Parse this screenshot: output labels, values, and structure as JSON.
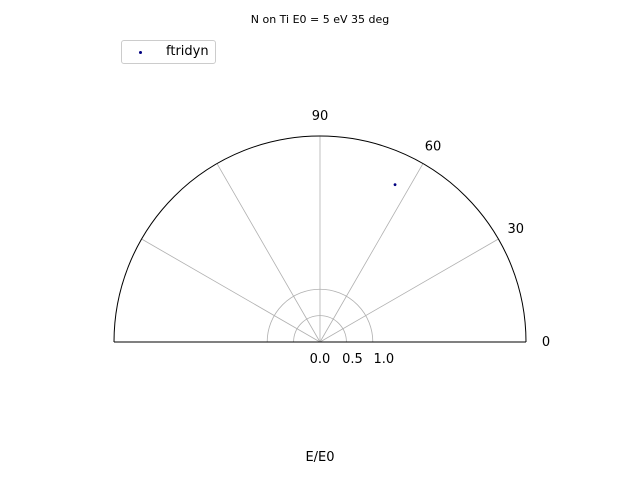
{
  "chart_data": {
    "type": "scatter",
    "projection": "polar-half",
    "title": "N on Ti E0 = 5 eV 35 deg",
    "xlabel": "E/E0",
    "ylabel": "",
    "radial_ticks": [
      "0.0",
      "0.5",
      "1.0"
    ],
    "radial_tick_values": [
      0.0,
      0.5,
      1.0
    ],
    "rmax": 3.9,
    "theta_range_deg": [
      0,
      180
    ],
    "theta_gridlines_deg": [
      30,
      60,
      90,
      120,
      150
    ],
    "theta_ticks": [
      "0",
      "30",
      "60",
      "90"
    ],
    "theta_tick_values_deg": [
      0,
      30,
      60,
      90
    ],
    "grid": true,
    "legend_position": "top-left",
    "series": [
      {
        "name": "ftridyn",
        "color": "#000080",
        "points": [
          {
            "r": 3.3,
            "theta_deg": 64.5
          }
        ]
      }
    ]
  }
}
